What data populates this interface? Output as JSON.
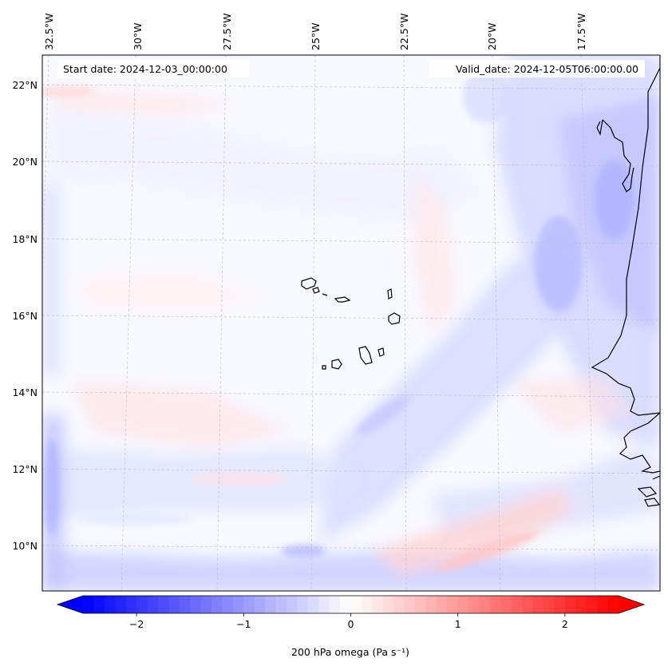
{
  "map": {
    "variable": "200 hPa omega",
    "units_html": "Pa s",
    "units_exponent": "−1",
    "start_date_label": "Start date: 2024-12-03_00:00:00",
    "valid_date_label": "Valid_date: 2024-12-05T06:00:00.00",
    "lon_labels": [
      "32.5°W",
      "30°W",
      "27.5°W",
      "25°W",
      "22.5°W",
      "20°W",
      "17.5°W"
    ],
    "lat_labels": [
      "22°N",
      "20°N",
      "18°N",
      "16°N",
      "14°N",
      "12°N",
      "10°N"
    ],
    "gridlines": true,
    "colormap": "bwr",
    "background_hex": "#f7f7ff"
  },
  "colorbar": {
    "label": "200 hPa omega (Pa s⁻¹)",
    "tick_labels": [
      "−2",
      "−1",
      "0",
      "1",
      "2"
    ],
    "tick_values": [
      -2,
      -1,
      0,
      1,
      2
    ],
    "range": [
      -2.5,
      2.5
    ],
    "extend": "both",
    "low_color": "#0000ff",
    "mid_color": "#ffffff",
    "high_color": "#ff0000"
  }
}
